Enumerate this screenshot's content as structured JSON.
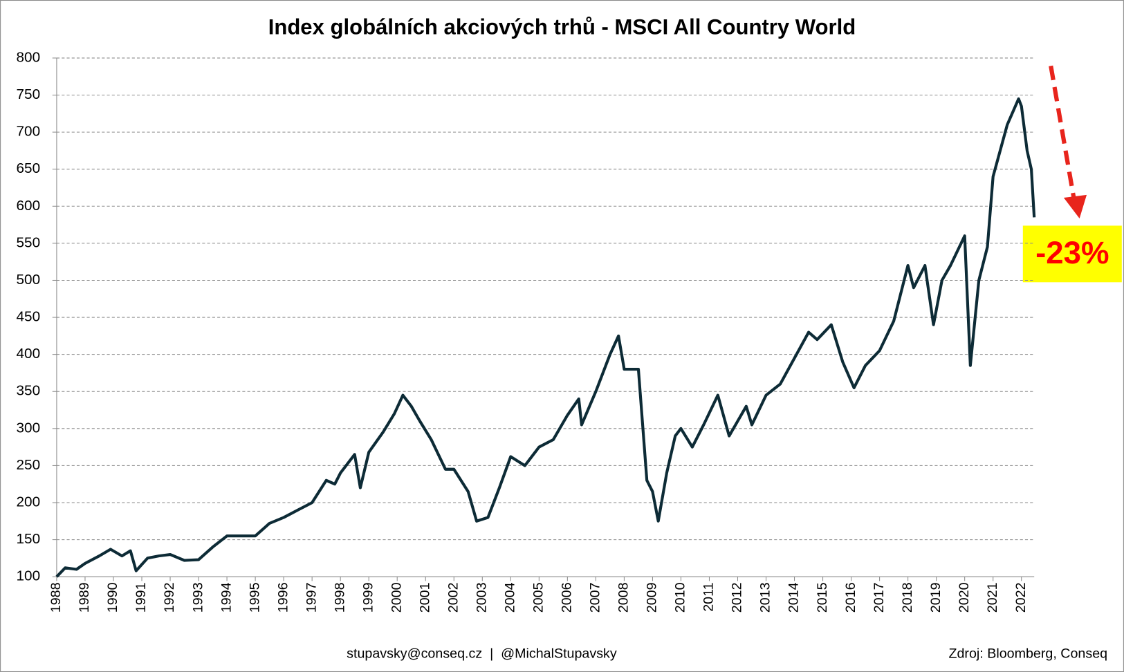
{
  "chart_data": {
    "type": "line",
    "title": "Index globálních akciových trhů - MSCI All Country World",
    "x": [
      1988.0,
      1988.3,
      1988.7,
      1989.0,
      1989.5,
      1989.9,
      1990.3,
      1990.6,
      1990.8,
      1991.2,
      1991.6,
      1992.0,
      1992.5,
      1993.0,
      1993.5,
      1994.0,
      1994.5,
      1995.0,
      1995.5,
      1996.0,
      1996.5,
      1997.0,
      1997.5,
      1997.8,
      1998.0,
      1998.5,
      1998.7,
      1999.0,
      1999.5,
      1999.9,
      2000.2,
      2000.5,
      2000.8,
      2001.2,
      2001.7,
      2002.0,
      2002.5,
      2002.8,
      2003.2,
      2003.6,
      2004.0,
      2004.5,
      2005.0,
      2005.5,
      2006.0,
      2006.4,
      2006.5,
      2007.0,
      2007.5,
      2007.8,
      2008.0,
      2008.5,
      2008.8,
      2009.0,
      2009.2,
      2009.5,
      2009.8,
      2010.0,
      2010.4,
      2010.8,
      2011.3,
      2011.7,
      2012.0,
      2012.3,
      2012.5,
      2013.0,
      2013.5,
      2014.0,
      2014.5,
      2014.8,
      2015.3,
      2015.7,
      2016.1,
      2016.5,
      2017.0,
      2017.5,
      2018.0,
      2018.2,
      2018.6,
      2018.9,
      2019.2,
      2019.5,
      2020.0,
      2020.2,
      2020.5,
      2020.8,
      2021.0,
      2021.5,
      2021.9,
      2022.0,
      2022.2,
      2022.35,
      2022.45
    ],
    "series": [
      {
        "name": "MSCI All Country World",
        "color": "#0d2b36",
        "values": [
          100,
          112,
          110,
          118,
          128,
          137,
          128,
          135,
          108,
          125,
          128,
          130,
          122,
          123,
          140,
          155,
          155,
          155,
          172,
          180,
          190,
          200,
          230,
          225,
          240,
          265,
          220,
          268,
          295,
          320,
          345,
          330,
          310,
          285,
          245,
          245,
          215,
          175,
          180,
          220,
          262,
          250,
          275,
          285,
          318,
          340,
          305,
          350,
          400,
          425,
          380,
          380,
          230,
          215,
          175,
          240,
          290,
          300,
          275,
          305,
          345,
          290,
          310,
          330,
          305,
          345,
          360,
          395,
          430,
          420,
          440,
          390,
          355,
          385,
          405,
          445,
          520,
          490,
          520,
          440,
          500,
          520,
          560,
          385,
          500,
          545,
          640,
          710,
          745,
          735,
          675,
          650,
          585
        ]
      }
    ],
    "xlim": [
      1988,
      2022.45
    ],
    "xticks": [
      1988,
      1989,
      1990,
      1991,
      1992,
      1993,
      1994,
      1995,
      1996,
      1997,
      1998,
      1999,
      2000,
      2001,
      2002,
      2003,
      2004,
      2005,
      2006,
      2007,
      2008,
      2009,
      2010,
      2011,
      2012,
      2013,
      2014,
      2015,
      2016,
      2017,
      2018,
      2019,
      2020,
      2021,
      2022
    ],
    "ylim": [
      100,
      800
    ],
    "yticks": [
      100,
      150,
      200,
      250,
      300,
      350,
      400,
      450,
      500,
      550,
      600,
      650,
      700,
      750,
      800
    ],
    "grid": true,
    "annotations": [
      "-23%",
      "stupavsky@conseq.cz  |  @MichalStupavsky",
      "Zdroj: Bloomberg, Conseq"
    ]
  }
}
